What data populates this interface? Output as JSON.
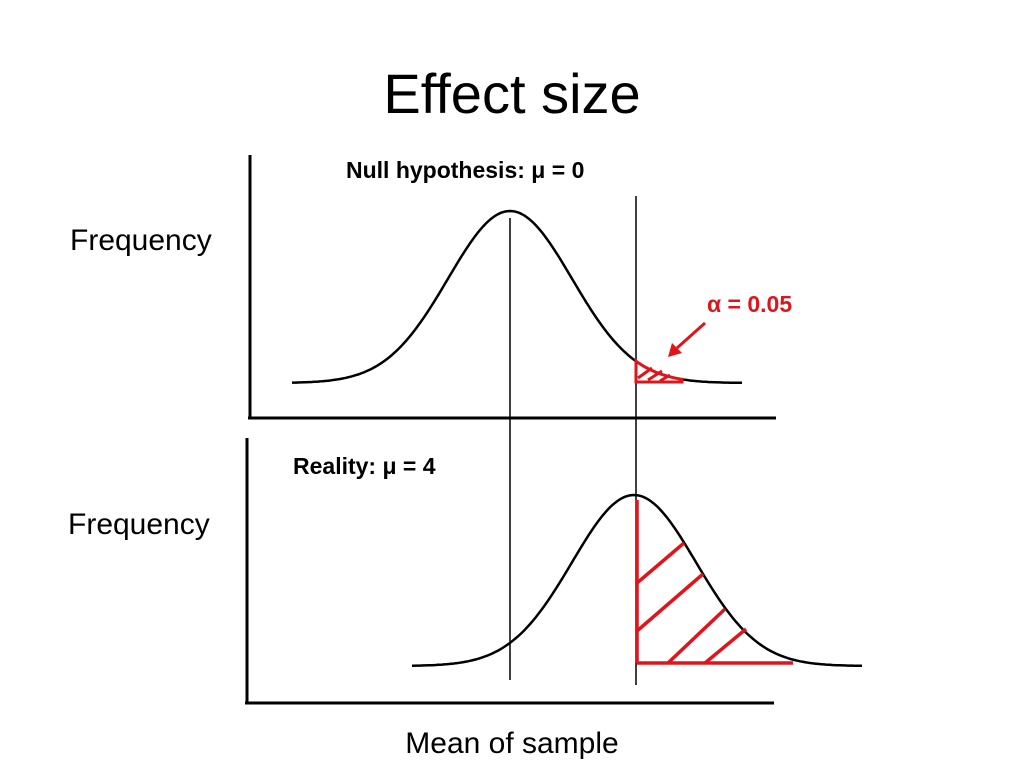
{
  "title": "Effect size",
  "y_axis_label": "Frequency",
  "x_axis_label": "Mean of sample",
  "top_panel": {
    "caption": "Null hypothesis: μ = 0",
    "mean": 0
  },
  "bottom_panel": {
    "caption": "Reality: μ = 4",
    "mean": 4
  },
  "alpha": {
    "symbol": "α",
    "text": "= 0.05",
    "value": 0.05
  },
  "colors": {
    "axis": "#000000",
    "curve": "#000000",
    "highlight": "#e0151b"
  }
}
